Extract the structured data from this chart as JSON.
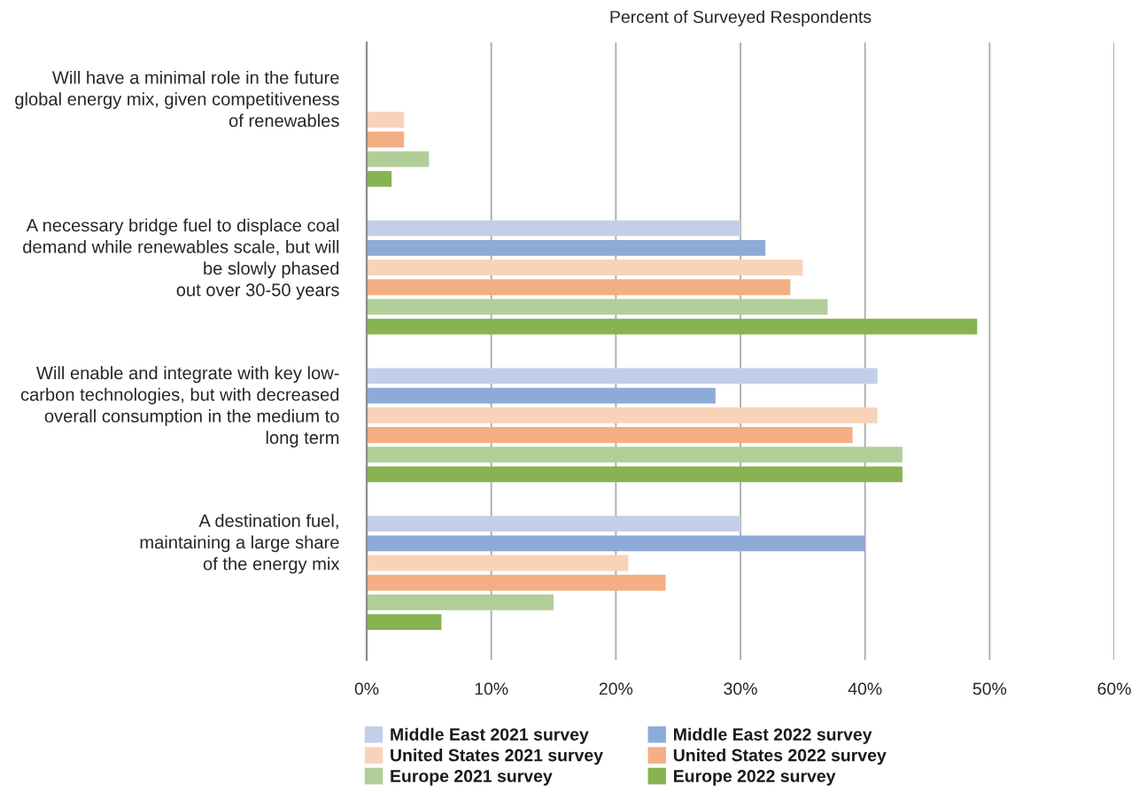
{
  "chart_data": {
    "type": "bar",
    "orientation": "horizontal",
    "xlabel": "Percent of Surveyed Respondents",
    "categories": [
      "Will have a minimal role in the future\nglobal energy mix, given competitiveness\nof renewables",
      "A necessary bridge fuel to displace coal\ndemand while renewables scale, but will\nbe slowly phased\nout over 30-50 years",
      "Will enable and integrate with key low-\ncarbon technologies, but with decreased\noverall consumption in the medium to\nlong term",
      "A destination fuel,\nmaintaining a large share\nof the energy mix"
    ],
    "series": [
      {
        "name": "Middle East 2021 survey",
        "color": "#c3cfe9",
        "values": [
          0,
          30,
          41,
          30
        ]
      },
      {
        "name": "Middle East 2022 survey",
        "color": "#8eabd8",
        "values": [
          0,
          32,
          28,
          40
        ]
      },
      {
        "name": "United States 2021 survey",
        "color": "#f9d3b9",
        "values": [
          3,
          35,
          41,
          21
        ]
      },
      {
        "name": "United States 2022 survey",
        "color": "#f3ae84",
        "values": [
          3,
          34,
          39,
          24
        ]
      },
      {
        "name": "Europe 2021 survey",
        "color": "#b2ce98",
        "values": [
          5,
          37,
          43,
          15
        ]
      },
      {
        "name": "Europe 2022 survey",
        "color": "#87b352",
        "values": [
          2,
          49,
          43,
          6
        ]
      }
    ],
    "xlim": [
      0,
      60
    ],
    "xticks": [
      {
        "value": 0,
        "label": "0%"
      },
      {
        "value": 10,
        "label": "10%"
      },
      {
        "value": 20,
        "label": "20%"
      },
      {
        "value": 30,
        "label": "30%"
      },
      {
        "value": 40,
        "label": "40%"
      },
      {
        "value": 50,
        "label": "50%"
      },
      {
        "value": 60,
        "label": "60%"
      }
    ],
    "grid": "x",
    "legend": "bottom"
  }
}
